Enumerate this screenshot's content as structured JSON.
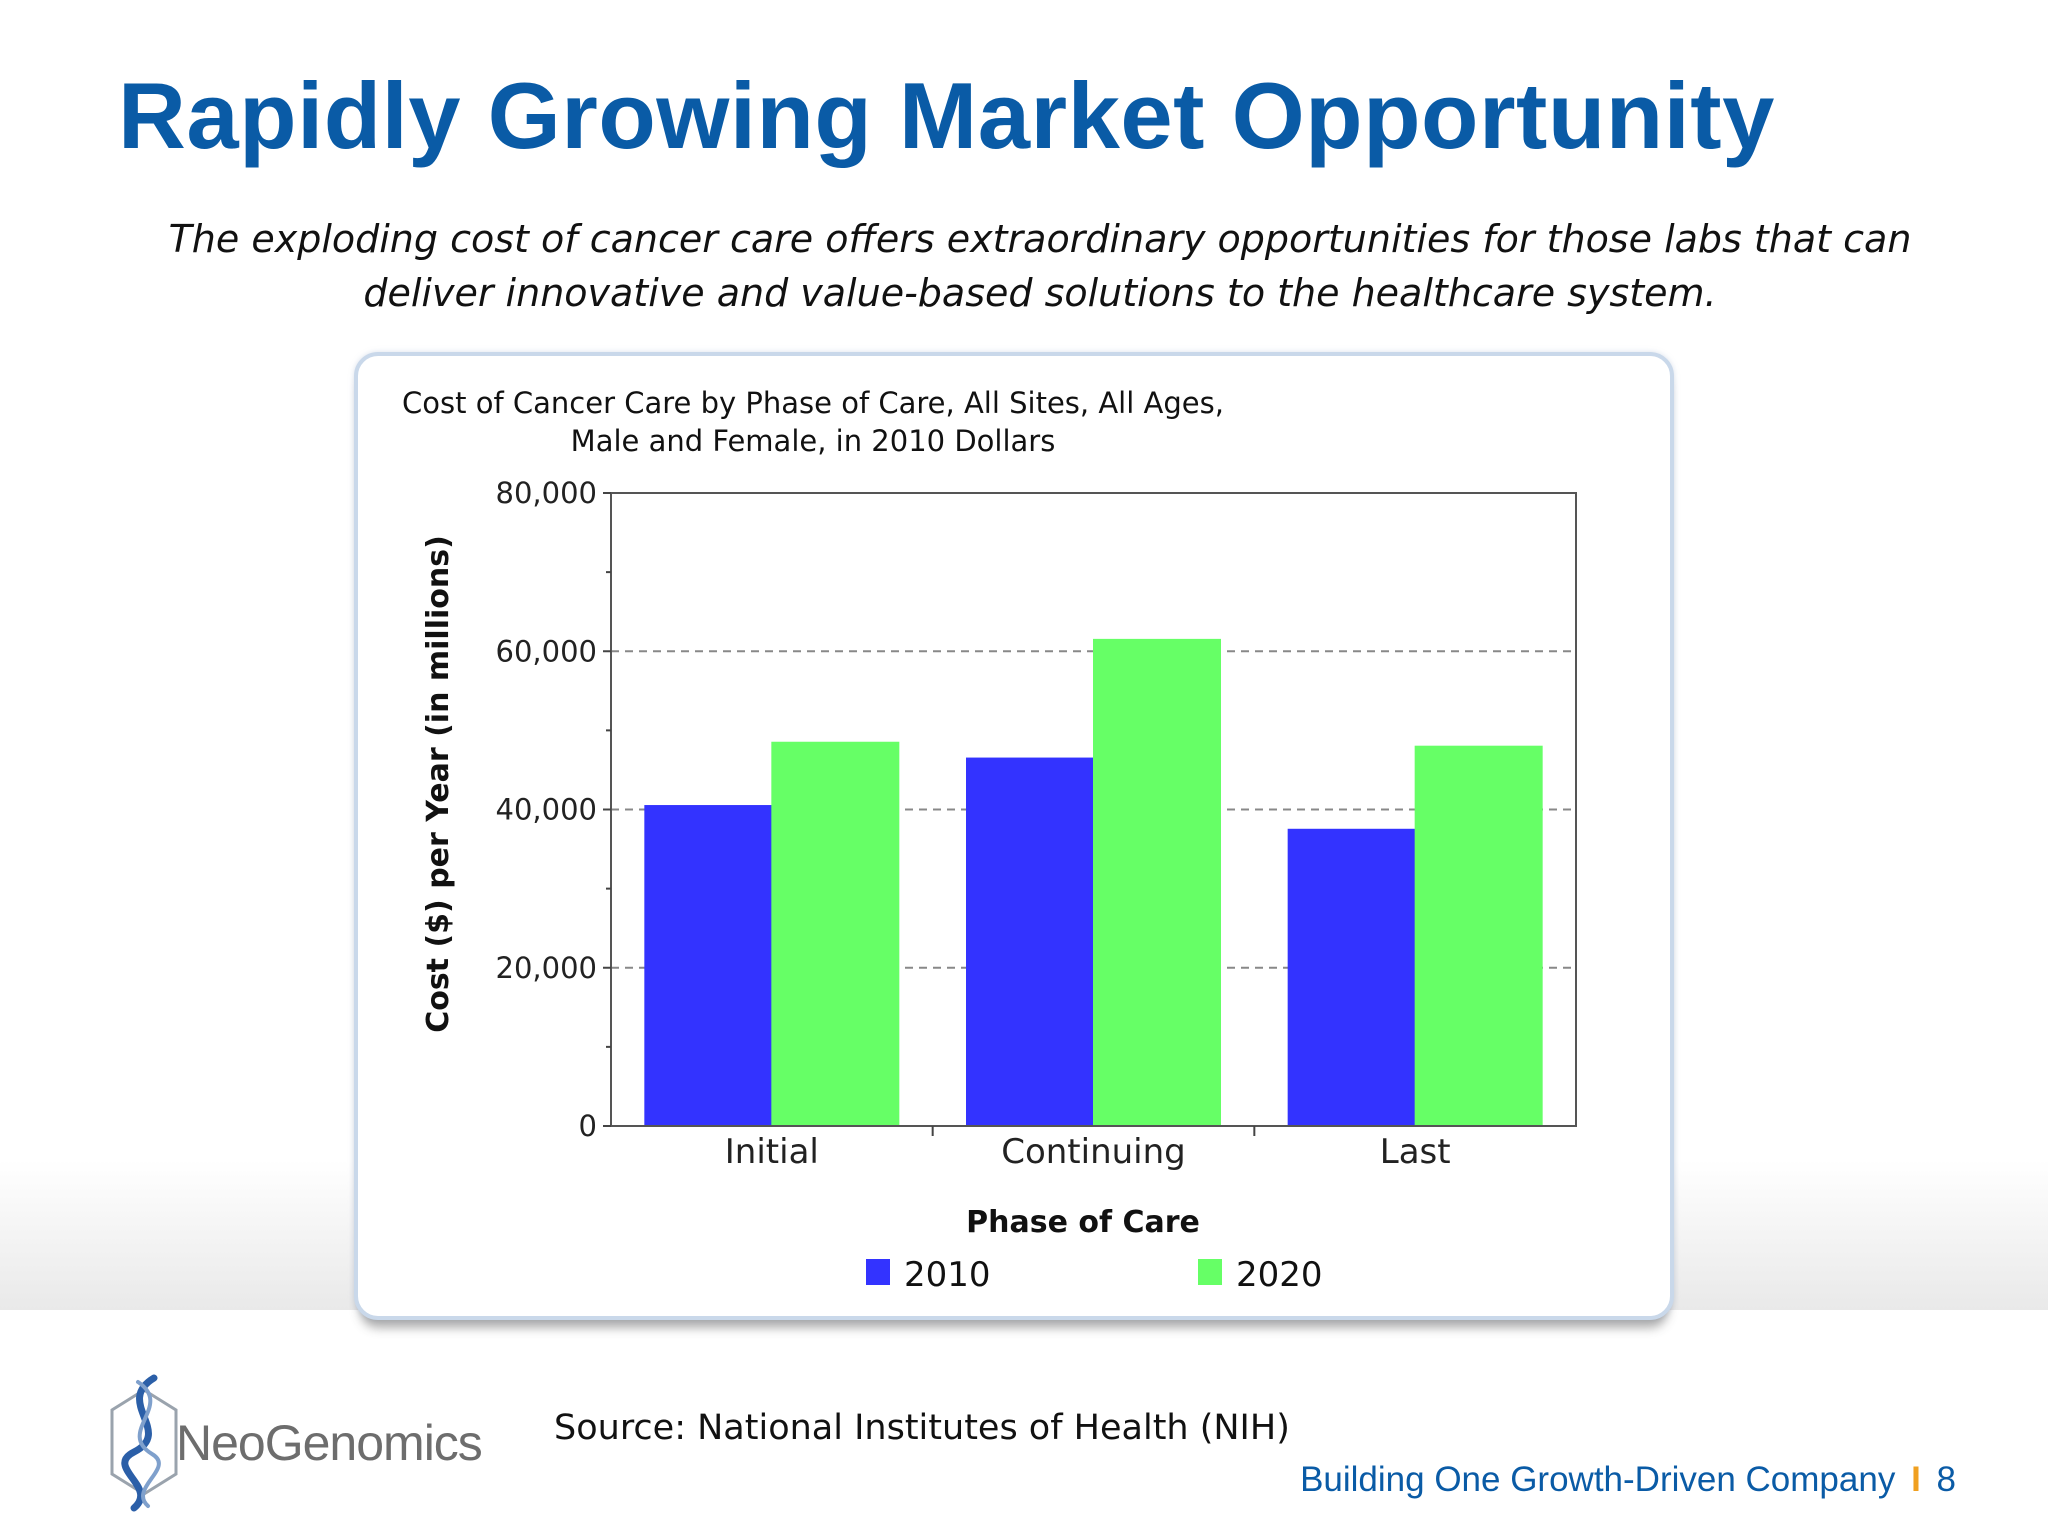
{
  "slide": {
    "title": "Rapidly Growing Market Opportunity",
    "subtitle_line1": "The exploding cost of cancer care offers extraordinary opportunities for those labs that can",
    "subtitle_line2": "deliver innovative and value-based solutions to the healthcare system.",
    "source": "Source:  National Institutes of Health (NIH)",
    "logo_text": "NeoGenomics",
    "footer_tagline": "Building One Growth-Driven Company",
    "footer_separator": "I",
    "page_number": "8"
  },
  "colors": {
    "title": "#0a5ba6",
    "series_2010": "#3333ff",
    "series_2020": "#66ff66"
  },
  "chart_data": {
    "type": "bar",
    "title_line1": "Cost of Cancer Care by Phase of Care, All Sites, All Ages,",
    "title_line2": "Male and Female, in 2010 Dollars",
    "xlabel": "Phase of Care",
    "ylabel": "Cost ($) per Year (in millions)",
    "categories": [
      "Initial",
      "Continuing",
      "Last"
    ],
    "series": [
      {
        "name": "2010",
        "color": "#3333ff",
        "values": [
          40500,
          46500,
          37500
        ]
      },
      {
        "name": "2020",
        "color": "#66ff66",
        "values": [
          48500,
          61500,
          48000
        ]
      }
    ],
    "ylim": [
      0,
      80000
    ],
    "yticks": [
      0,
      20000,
      40000,
      60000,
      80000
    ],
    "ytick_labels": [
      "0",
      "20,000",
      "40,000",
      "60,000",
      "80,000"
    ],
    "grid": "dashed horizontal at 20,000 / 40,000 / 60,000",
    "legend_position": "bottom"
  }
}
